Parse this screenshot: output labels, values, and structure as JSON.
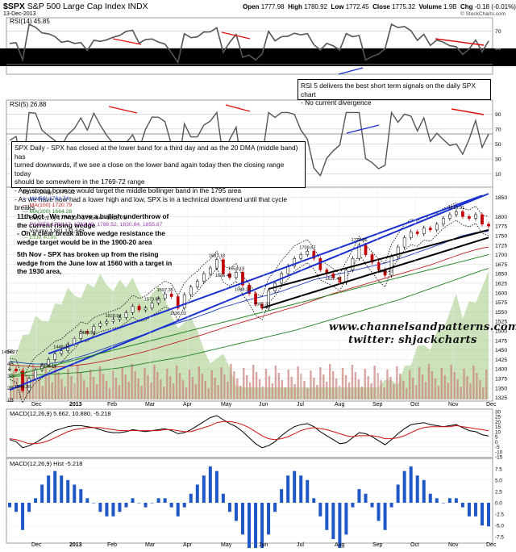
{
  "header": {
    "symbol": "$SPX",
    "name": "S&P 500 Large Cap Index",
    "exchange": "INDX",
    "date": "13-Dec-2013",
    "open_label": "Open",
    "open": "1777.98",
    "high_label": "High",
    "high": "1780.92",
    "low_label": "Low",
    "low": "1772.45",
    "close_label": "Close",
    "close": "1775.32",
    "volume_label": "Volume",
    "volume": "1.9B",
    "chg_label": "Chg",
    "chg": "-0.18 (-0.01%)",
    "chg_arrow": "▼",
    "credit": "© StockCharts.com"
  },
  "rsi14": {
    "label": "RSI(14) 45.85",
    "levels": [
      "70",
      "50",
      "30"
    ]
  },
  "rsi5": {
    "label": "RSI(5) 26.88",
    "levels": [
      "90",
      "70",
      "50",
      "30",
      "10"
    ]
  },
  "notes": {
    "rsi_note": [
      "RSI 5 delivers the best short term signals on the daily SPX chart",
      "- No current divergence"
    ],
    "main_note": [
      "SPX Daily - SPX has closed at the lower band for a third day and as the 20 DMA (middle band) has",
      "turned downwards, if we see a close on the lower band again today then the closing range today",
      "should be somewhere in the 1769-72 range",
      "- Any strong bounce would target the middle bollinger band in the 1795 area",
      "- As we have now had a lower high and low, SPX is in a technical downtrend until that cycle breaks"
    ],
    "oct_note": [
      "11th Oct - We may have a bullish underthrow of",
      "the current rising wedge",
      "- On a clear break above wedge resistance the",
      "wedge target would be in the 1900-20 area"
    ],
    "nov_note": [
      "5th Nov - SPX has broken up from the rising",
      "wedge from the June low at 1560 with a target in",
      "the 1930 area,"
    ]
  },
  "watermark": {
    "line1": "www.channelsandpatterns.com",
    "line2": "twitter: shjackcharts"
  },
  "legend": {
    "title": "$SPX (Daily) 1775.32",
    "items": [
      {
        "text": "MA(50) 1761.74",
        "color": "#1f3fbf"
      },
      {
        "text": "MA(100) 1720.79",
        "color": "#c02020"
      },
      {
        "text": "MA(200) 1664.28",
        "color": "#208020"
      },
      {
        "text": "BB(20,2.0) 1774.33 - 1795.04 - 1815.76",
        "color": "#000000"
      },
      {
        "text": "PIVOTS 1721.17, 1763.49, 1788.52, 1830.84, 1855.87",
        "color": "#9a3fb0"
      },
      {
        "text": "Volume 1,881,131,648",
        "color": "#000000"
      },
      {
        "text": "EEM 40.95",
        "color": "#6aa84f"
      }
    ]
  },
  "macd": {
    "label": "MACD(12,26,9) 5.662, 10.880, -5.218"
  },
  "hist": {
    "label": "MACD(12,26,9) Hist -5.218"
  },
  "chart_data": {
    "type": "line",
    "title": "$SPX S&P 500 Large Cap Index INDX",
    "x_tick_labels": [
      "Dec",
      "2013",
      "Feb",
      "Mar",
      "Apr",
      "May",
      "Jun",
      "Jul",
      "Aug",
      "Sep",
      "Oct",
      "Nov",
      "Dec"
    ],
    "y_tick_labels": [
      "1850",
      "1800",
      "1775",
      "1750",
      "1725",
      "1700",
      "1675",
      "1650",
      "1625",
      "1600",
      "1575",
      "1550",
      "1525",
      "1500",
      "1475",
      "1450",
      "1425",
      "1400",
      "1375",
      "1350",
      "1325"
    ],
    "ylim": [
      1320,
      1860
    ],
    "vol_tick_labels": [
      "5B",
      "4B",
      "3B",
      "2B",
      "1B"
    ],
    "macd_tick_labels": [
      "30",
      "25",
      "20",
      "15",
      "10",
      "5",
      "0",
      "-5",
      "-10",
      "-15"
    ],
    "hist_tick_labels": [
      "7.5",
      "5.0",
      "2.5",
      "0.0",
      "-2.5",
      "-5.0",
      "-7.5"
    ],
    "price_annotations": [
      {
        "text": "1343.35",
        "i": 2,
        "y": 1343
      },
      {
        "text": "1434.27",
        "i": 0,
        "y": 1434
      },
      {
        "text": "1448.00",
        "i": 8,
        "y": 1448
      },
      {
        "text": "1398.11",
        "i": 6,
        "y": 1398
      },
      {
        "text": "1485.91",
        "i": 12,
        "y": 1485
      },
      {
        "text": "1530.94",
        "i": 16,
        "y": 1530
      },
      {
        "text": "1597.35",
        "i": 24,
        "y": 1597
      },
      {
        "text": "1573.66",
        "i": 22,
        "y": 1573
      },
      {
        "text": "1536.03",
        "i": 26,
        "y": 1536
      },
      {
        "text": "1687.18",
        "i": 32,
        "y": 1687
      },
      {
        "text": "1654.19",
        "i": 35,
        "y": 1654
      },
      {
        "text": "1636.42",
        "i": 33,
        "y": 1636
      },
      {
        "text": "1598.23",
        "i": 36,
        "y": 1598
      },
      {
        "text": "1560.33",
        "i": 39,
        "y": 1560
      },
      {
        "text": "1709.67",
        "i": 46,
        "y": 1709
      },
      {
        "text": "1627.47",
        "i": 50,
        "y": 1627
      },
      {
        "text": "1729.86",
        "i": 54,
        "y": 1729
      },
      {
        "text": "1646.47",
        "i": 58,
        "y": 1646
      },
      {
        "text": "1815.91",
        "i": 69,
        "y": 1813
      }
    ],
    "series": [
      {
        "name": "$SPX (Daily)",
        "values": [
          1400,
          1395,
          1343,
          1375,
          1398,
          1410,
          1425,
          1440,
          1448,
          1465,
          1480,
          1498,
          1495,
          1512,
          1520,
          1525,
          1530,
          1535,
          1548,
          1565,
          1555,
          1560,
          1573,
          1585,
          1597,
          1590,
          1560,
          1595,
          1615,
          1630,
          1650,
          1665,
          1687,
          1650,
          1640,
          1654,
          1620,
          1598,
          1570,
          1560,
          1605,
          1625,
          1650,
          1670,
          1690,
          1700,
          1709,
          1690,
          1660,
          1650,
          1640,
          1627,
          1660,
          1690,
          1725,
          1700,
          1680,
          1660,
          1646,
          1695,
          1720,
          1745,
          1760,
          1755,
          1770,
          1765,
          1780,
          1795,
          1805,
          1813,
          1800,
          1795,
          1805,
          1780,
          1775
        ]
      },
      {
        "name": "MA(50)",
        "values": [
          1420,
          1418,
          1416,
          1414,
          1413,
          1413,
          1414,
          1416,
          1419,
          1423,
          1428,
          1433,
          1438,
          1444,
          1450,
          1456,
          1462,
          1468,
          1474,
          1480,
          1486,
          1492,
          1498,
          1504,
          1510,
          1516,
          1521,
          1526,
          1531,
          1537,
          1543,
          1549,
          1556,
          1562,
          1567,
          1572,
          1577,
          1582,
          1586,
          1590,
          1594,
          1599,
          1604,
          1610,
          1616,
          1622,
          1628,
          1634,
          1638,
          1642,
          1646,
          1650,
          1654,
          1658,
          1662,
          1666,
          1670,
          1674,
          1678,
          1683,
          1688,
          1694,
          1700,
          1706,
          1712,
          1718,
          1724,
          1730,
          1737,
          1744,
          1750,
          1754,
          1758,
          1760,
          1761
        ]
      },
      {
        "name": "MA(100)",
        "values": [
          1410,
          1409,
          1408,
          1407,
          1406,
          1405,
          1405,
          1405,
          1406,
          1407,
          1409,
          1411,
          1413,
          1416,
          1419,
          1422,
          1426,
          1430,
          1434,
          1438,
          1442,
          1446,
          1451,
          1456,
          1461,
          1466,
          1471,
          1476,
          1481,
          1486,
          1491,
          1497,
          1502,
          1508,
          1513,
          1518,
          1523,
          1528,
          1533,
          1538,
          1543,
          1548,
          1553,
          1558,
          1563,
          1568,
          1574,
          1580,
          1586,
          1592,
          1598,
          1603,
          1608,
          1613,
          1618,
          1623,
          1628,
          1633,
          1638,
          1643,
          1648,
          1653,
          1658,
          1663,
          1668,
          1673,
          1679,
          1685,
          1691,
          1697,
          1703,
          1708,
          1713,
          1717,
          1720
        ]
      },
      {
        "name": "MA(200)",
        "values": [
          1380,
          1381,
          1382,
          1383,
          1384,
          1385,
          1386,
          1387,
          1388,
          1389,
          1390,
          1391,
          1393,
          1395,
          1397,
          1399,
          1401,
          1403,
          1406,
          1409,
          1412,
          1415,
          1418,
          1421,
          1424,
          1427,
          1430,
          1433,
          1437,
          1441,
          1445,
          1449,
          1453,
          1457,
          1461,
          1465,
          1469,
          1473,
          1477,
          1481,
          1485,
          1489,
          1493,
          1497,
          1501,
          1506,
          1511,
          1516,
          1521,
          1526,
          1531,
          1536,
          1541,
          1546,
          1551,
          1556,
          1561,
          1566,
          1571,
          1576,
          1581,
          1587,
          1593,
          1599,
          1605,
          1611,
          1617,
          1623,
          1629,
          1635,
          1641,
          1647,
          1653,
          1659,
          1664
        ]
      },
      {
        "name": "MACD",
        "values": [
          2,
          0,
          -6,
          -4,
          -1,
          3,
          7,
          11,
          13,
          15,
          16,
          16,
          15,
          14,
          12,
          10,
          9,
          9,
          10,
          12,
          11,
          10,
          11,
          12,
          13,
          11,
          8,
          9,
          12,
          16,
          20,
          24,
          26,
          22,
          18,
          15,
          10,
          4,
          -2,
          -6,
          -4,
          0,
          6,
          11,
          15,
          17,
          18,
          15,
          10,
          6,
          2,
          -2,
          -1,
          4,
          9,
          8,
          5,
          1,
          -3,
          2,
          8,
          13,
          17,
          18,
          19,
          17,
          16,
          15,
          16,
          17,
          14,
          11,
          10,
          7,
          5.7
        ]
      },
      {
        "name": "Signal",
        "values": [
          3,
          2,
          0,
          -2,
          -2,
          -1,
          1,
          4,
          7,
          10,
          12,
          13,
          14,
          14,
          14,
          13,
          12,
          11,
          11,
          11,
          11,
          11,
          11,
          11,
          12,
          12,
          11,
          10,
          10,
          12,
          14,
          16,
          19,
          20,
          20,
          19,
          17,
          14,
          10,
          6,
          3,
          2,
          3,
          5,
          8,
          11,
          13,
          14,
          13,
          12,
          10,
          8,
          6,
          5,
          6,
          6,
          6,
          5,
          3,
          3,
          4,
          6,
          9,
          12,
          14,
          15,
          15,
          15,
          15,
          16,
          15,
          14,
          13,
          12,
          10.9
        ]
      }
    ]
  }
}
